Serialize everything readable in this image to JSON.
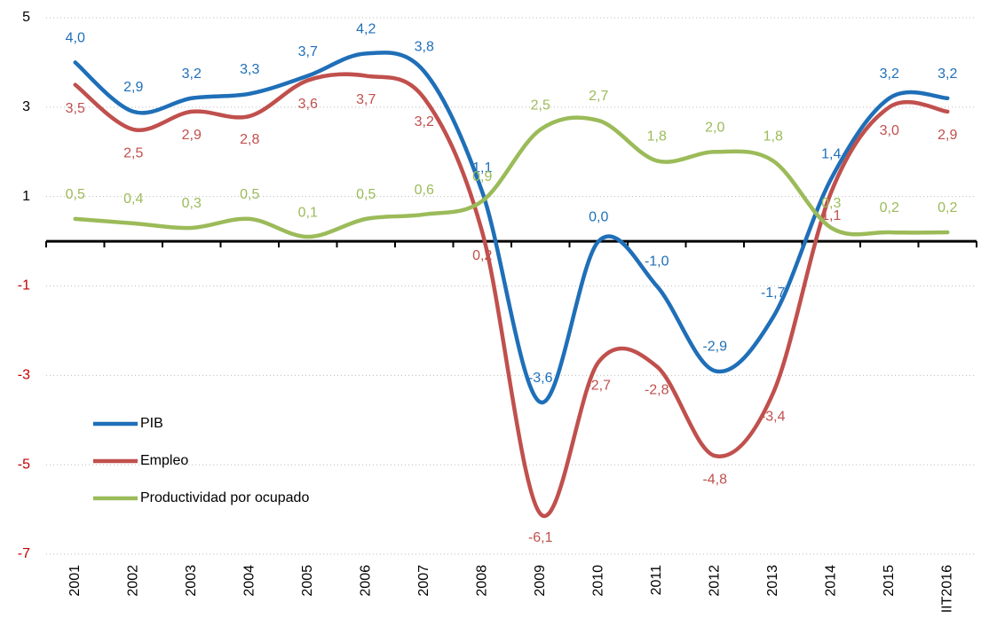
{
  "chart_data": {
    "type": "line",
    "categories": [
      "2001",
      "2002",
      "2003",
      "2004",
      "2005",
      "2006",
      "2007",
      "2008",
      "2009",
      "2010",
      "2011",
      "2012",
      "2013",
      "2014",
      "2015",
      "IIT2016"
    ],
    "series": [
      {
        "name": "PIB",
        "color": "#1f6fb8",
        "values": [
          4.0,
          2.9,
          3.2,
          3.3,
          3.7,
          4.2,
          3.8,
          1.1,
          -3.6,
          0.0,
          -1.0,
          -2.9,
          -1.7,
          1.4,
          3.2,
          3.2
        ],
        "value_labels": [
          "4,0",
          "2,9",
          "3,2",
          "3,3",
          "3,7",
          "4,2",
          "3,8",
          "1,1",
          "-3,6",
          "0,0",
          "-1,0",
          "-2,9",
          "-1,7",
          "1,4",
          "3,2",
          "3,2"
        ]
      },
      {
        "name": "Empleo",
        "color": "#c0504d",
        "values": [
          3.5,
          2.5,
          2.9,
          2.8,
          3.6,
          3.7,
          3.2,
          0.2,
          -6.1,
          -2.7,
          -2.8,
          -4.8,
          -3.4,
          1.1,
          3.0,
          2.9
        ],
        "value_labels": [
          "3,5",
          "2,5",
          "2,9",
          "2,8",
          "3,6",
          "3,7",
          "3,2",
          "0,2",
          "-6,1",
          "-2,7",
          "-2,8",
          "-4,8",
          "-3,4",
          "1,1",
          "3,0",
          "2,9"
        ]
      },
      {
        "name": "Productividad por ocupado",
        "color": "#9bbb59",
        "values": [
          0.5,
          0.4,
          0.3,
          0.5,
          0.1,
          0.5,
          0.6,
          0.9,
          2.5,
          2.7,
          1.8,
          2.0,
          1.8,
          0.3,
          0.2,
          0.2
        ],
        "value_labels": [
          "0,5",
          "0,4",
          "0,3",
          "0,5",
          "0,1",
          "0,5",
          "0,6",
          "0,9",
          "2,5",
          "2,7",
          "1,8",
          "2,0",
          "1,8",
          "0,3",
          "0,2",
          "0,2"
        ]
      }
    ],
    "ylim": [
      -7,
      5
    ],
    "yticks": [
      5,
      3,
      1,
      -1,
      -3,
      -5,
      -7
    ],
    "grid": true,
    "legend": "left"
  }
}
